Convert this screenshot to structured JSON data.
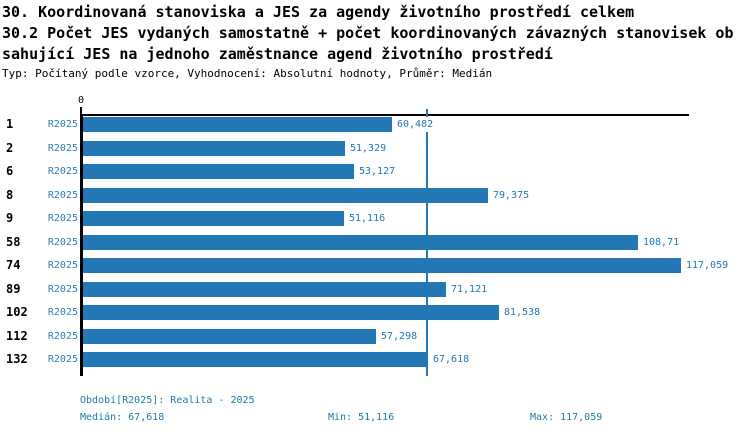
{
  "header": {
    "title_line1": "30. Koordinovaná stanoviska a JES za agendy životního prostředí celkem",
    "title_line2": "30.2 Počet JES vydaných samostatně + počet koordinovaných závazných stanovisek ob",
    "title_line3": "sahující JES na jednoho zaměstnance agend životního prostředí",
    "meta": "Typ: Počítaný podle vzorce, Vyhodnocení: Absolutní hodnoty, Průměr: Medián"
  },
  "chart_data": {
    "type": "bar",
    "orientation": "horizontal",
    "title": "30.2 Počet JES vydaných samostatně + počet koordinovaných závazných stanovisek obsahující JES na jednoho zaměstnance agend životního prostředí",
    "categories": [
      "1",
      "2",
      "6",
      "8",
      "9",
      "58",
      "74",
      "89",
      "102",
      "112",
      "132"
    ],
    "series": [
      {
        "name": "R2025",
        "values": [
          60.482,
          51.329,
          53.127,
          79.375,
          51.116,
          108.71,
          117.059,
          71.121,
          81.538,
          57.298,
          67.618
        ],
        "value_labels": [
          "60,482",
          "51,329",
          "53,127",
          "79,375",
          "51,116",
          "108,71",
          "117,059",
          "71,121",
          "81,538",
          "57,298",
          "67,618"
        ]
      }
    ],
    "axis": {
      "zero_label": "0",
      "xlim": [
        0,
        119
      ],
      "ticks_position": "top",
      "grid": false
    },
    "median": {
      "value": 67.618,
      "label": "67,618"
    },
    "legend_position": "per-row-left",
    "colors": {
      "bar": "#2277B4",
      "median_line": "#2277B4",
      "value_text": "#2277B4",
      "axis": "#000000"
    }
  },
  "footer": {
    "period": "Období[R2025]: Realita - 2025",
    "median": "Medián: 67,618",
    "min": "Min: 51,116",
    "max": "Max: 117,059"
  }
}
